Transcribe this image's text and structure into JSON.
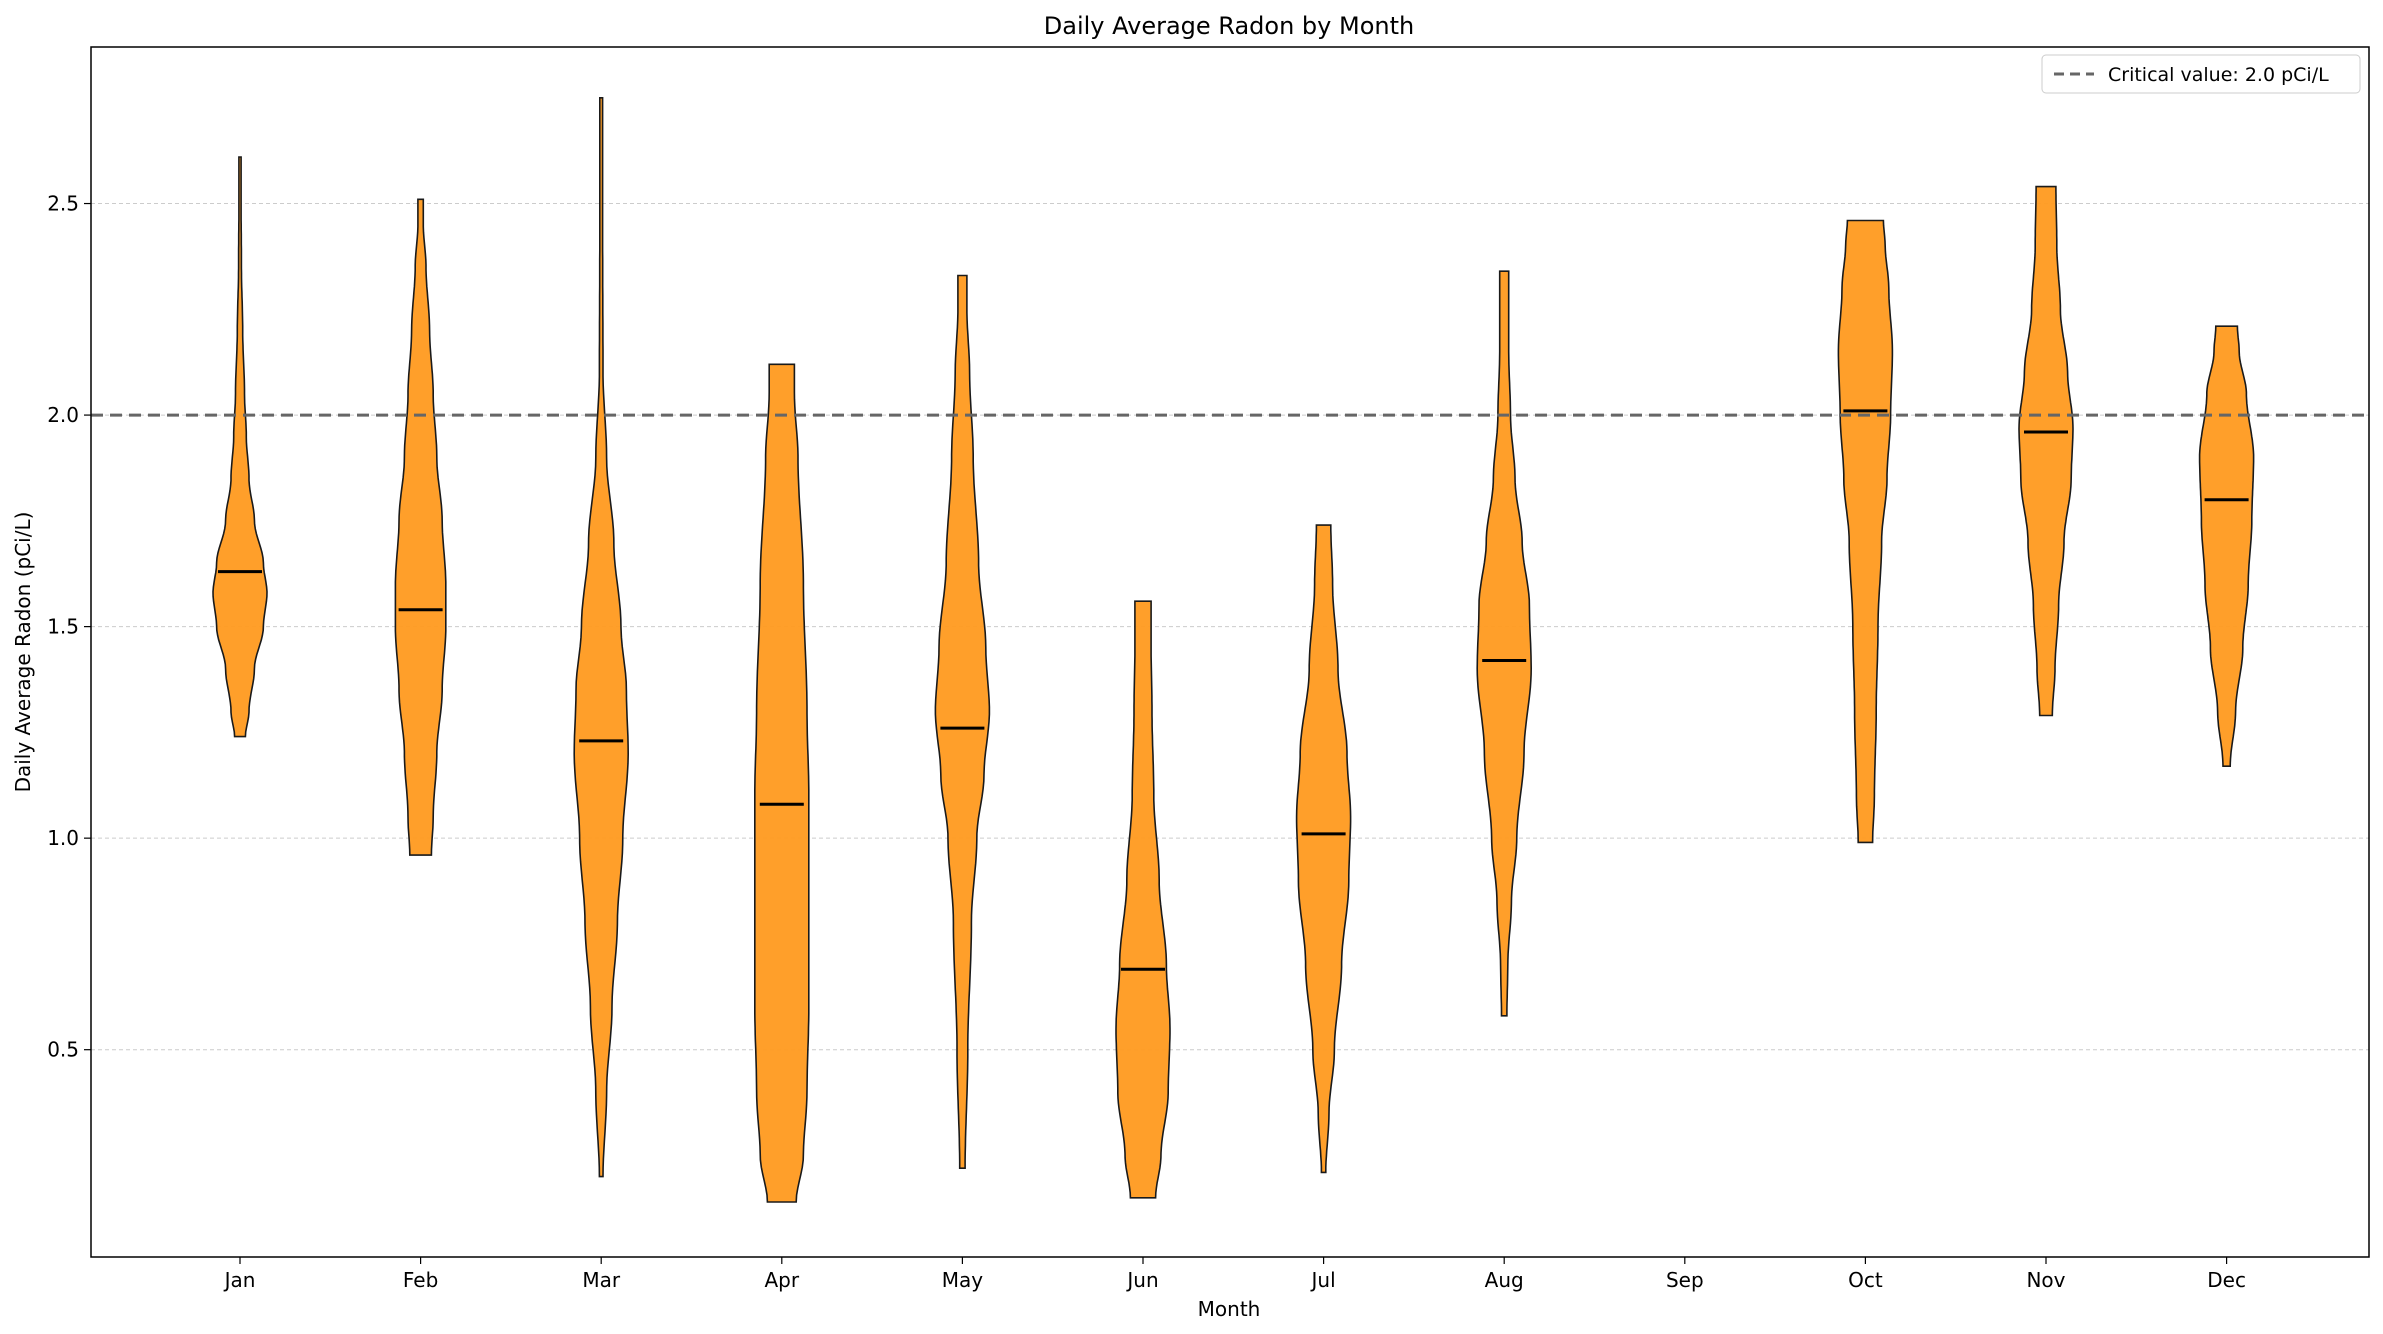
{
  "chart_data": {
    "type": "violin",
    "title": "Daily Average Radon by Month",
    "xlabel": "Month",
    "ylabel": "Daily Average Radon (pCi/L)",
    "ylim": [
      0.01,
      2.87
    ],
    "yticks": [
      0.5,
      1.0,
      1.5,
      2.0,
      2.5
    ],
    "ytick_labels": [
      "0.5",
      "1.0",
      "1.5",
      "2.0",
      "2.5"
    ],
    "categories": [
      "Jan",
      "Feb",
      "Mar",
      "Apr",
      "May",
      "Jun",
      "Jul",
      "Aug",
      "Sep",
      "Oct",
      "Nov",
      "Dec"
    ],
    "grid": "y-dashed",
    "fill_color": "#ff9a1f",
    "edge_color": "#1a1a1a",
    "reference_line": {
      "value": 2.0,
      "color": "#666666",
      "style": "dashed",
      "label": "Critical value: 2.0 pCi/L"
    },
    "legend": {
      "location": "top-right",
      "entries": [
        "Critical value: 2.0 pCi/L"
      ]
    },
    "series": [
      {
        "month": "Jan",
        "min": 1.24,
        "max": 2.61,
        "median": 1.63,
        "profile": [
          [
            1.24,
            0.03
          ],
          [
            1.3,
            0.05
          ],
          [
            1.4,
            0.08
          ],
          [
            1.5,
            0.13
          ],
          [
            1.58,
            0.15
          ],
          [
            1.65,
            0.13
          ],
          [
            1.75,
            0.08
          ],
          [
            1.85,
            0.05
          ],
          [
            1.95,
            0.035
          ],
          [
            2.05,
            0.025
          ],
          [
            2.2,
            0.015
          ],
          [
            2.35,
            0.008
          ],
          [
            2.5,
            0.006
          ],
          [
            2.61,
            0.006
          ]
        ]
      },
      {
        "month": "Feb",
        "min": 0.96,
        "max": 2.51,
        "median": 1.54,
        "profile": [
          [
            0.96,
            0.06
          ],
          [
            1.05,
            0.07
          ],
          [
            1.2,
            0.09
          ],
          [
            1.35,
            0.12
          ],
          [
            1.5,
            0.14
          ],
          [
            1.6,
            0.14
          ],
          [
            1.75,
            0.12
          ],
          [
            1.9,
            0.09
          ],
          [
            2.05,
            0.07
          ],
          [
            2.2,
            0.05
          ],
          [
            2.35,
            0.03
          ],
          [
            2.45,
            0.015
          ],
          [
            2.51,
            0.015
          ]
        ]
      },
      {
        "month": "Mar",
        "min": 0.2,
        "max": 2.75,
        "median": 1.23,
        "profile": [
          [
            0.2,
            0.01
          ],
          [
            0.4,
            0.03
          ],
          [
            0.6,
            0.06
          ],
          [
            0.8,
            0.09
          ],
          [
            1.0,
            0.12
          ],
          [
            1.2,
            0.15
          ],
          [
            1.35,
            0.14
          ],
          [
            1.5,
            0.11
          ],
          [
            1.7,
            0.07
          ],
          [
            1.9,
            0.03
          ],
          [
            2.1,
            0.01
          ],
          [
            2.4,
            0.008
          ],
          [
            2.6,
            0.008
          ],
          [
            2.75,
            0.008
          ]
        ]
      },
      {
        "month": "Apr",
        "min": 0.14,
        "max": 2.12,
        "median": 1.08,
        "profile": [
          [
            0.14,
            0.08
          ],
          [
            0.25,
            0.12
          ],
          [
            0.4,
            0.14
          ],
          [
            0.6,
            0.15
          ],
          [
            0.9,
            0.15
          ],
          [
            1.1,
            0.15
          ],
          [
            1.3,
            0.14
          ],
          [
            1.6,
            0.12
          ],
          [
            1.9,
            0.09
          ],
          [
            2.05,
            0.07
          ],
          [
            2.12,
            0.07
          ]
        ]
      },
      {
        "month": "May",
        "min": 0.22,
        "max": 2.33,
        "median": 1.26,
        "profile": [
          [
            0.22,
            0.015
          ],
          [
            0.5,
            0.03
          ],
          [
            0.8,
            0.05
          ],
          [
            1.0,
            0.08
          ],
          [
            1.15,
            0.12
          ],
          [
            1.3,
            0.15
          ],
          [
            1.45,
            0.13
          ],
          [
            1.65,
            0.09
          ],
          [
            1.9,
            0.06
          ],
          [
            2.1,
            0.04
          ],
          [
            2.25,
            0.025
          ],
          [
            2.33,
            0.025
          ]
        ]
      },
      {
        "month": "Jun",
        "min": 0.15,
        "max": 1.56,
        "median": 0.69,
        "profile": [
          [
            0.15,
            0.07
          ],
          [
            0.25,
            0.1
          ],
          [
            0.4,
            0.14
          ],
          [
            0.55,
            0.15
          ],
          [
            0.7,
            0.13
          ],
          [
            0.9,
            0.09
          ],
          [
            1.1,
            0.06
          ],
          [
            1.3,
            0.05
          ],
          [
            1.45,
            0.045
          ],
          [
            1.56,
            0.045
          ]
        ]
      },
      {
        "month": "Jul",
        "min": 0.21,
        "max": 1.74,
        "median": 1.01,
        "profile": [
          [
            0.21,
            0.012
          ],
          [
            0.35,
            0.03
          ],
          [
            0.5,
            0.06
          ],
          [
            0.7,
            0.1
          ],
          [
            0.9,
            0.14
          ],
          [
            1.05,
            0.15
          ],
          [
            1.2,
            0.13
          ],
          [
            1.4,
            0.08
          ],
          [
            1.6,
            0.05
          ],
          [
            1.74,
            0.04
          ]
        ]
      },
      {
        "month": "Aug",
        "min": 0.58,
        "max": 2.34,
        "median": 1.42,
        "profile": [
          [
            0.58,
            0.015
          ],
          [
            0.7,
            0.02
          ],
          [
            0.85,
            0.04
          ],
          [
            1.0,
            0.07
          ],
          [
            1.2,
            0.11
          ],
          [
            1.4,
            0.15
          ],
          [
            1.55,
            0.14
          ],
          [
            1.7,
            0.1
          ],
          [
            1.85,
            0.06
          ],
          [
            2.0,
            0.035
          ],
          [
            2.15,
            0.025
          ],
          [
            2.34,
            0.025
          ]
        ]
      },
      {
        "month": "Sep",
        "profile": []
      },
      {
        "month": "Oct",
        "min": 0.99,
        "max": 2.46,
        "median": 2.01,
        "profile": [
          [
            0.99,
            0.04
          ],
          [
            1.1,
            0.05
          ],
          [
            1.3,
            0.06
          ],
          [
            1.5,
            0.07
          ],
          [
            1.7,
            0.09
          ],
          [
            1.85,
            0.12
          ],
          [
            2.0,
            0.14
          ],
          [
            2.15,
            0.15
          ],
          [
            2.3,
            0.13
          ],
          [
            2.4,
            0.11
          ],
          [
            2.46,
            0.1
          ]
        ]
      },
      {
        "month": "Nov",
        "min": 1.29,
        "max": 2.54,
        "median": 1.96,
        "profile": [
          [
            1.29,
            0.035
          ],
          [
            1.4,
            0.05
          ],
          [
            1.55,
            0.07
          ],
          [
            1.7,
            0.1
          ],
          [
            1.85,
            0.14
          ],
          [
            1.97,
            0.15
          ],
          [
            2.1,
            0.12
          ],
          [
            2.25,
            0.08
          ],
          [
            2.4,
            0.06
          ],
          [
            2.54,
            0.055
          ]
        ]
      },
      {
        "month": "Dec",
        "min": 1.17,
        "max": 2.21,
        "median": 1.8,
        "profile": [
          [
            1.17,
            0.02
          ],
          [
            1.3,
            0.05
          ],
          [
            1.45,
            0.09
          ],
          [
            1.6,
            0.12
          ],
          [
            1.75,
            0.14
          ],
          [
            1.9,
            0.15
          ],
          [
            2.05,
            0.11
          ],
          [
            2.15,
            0.07
          ],
          [
            2.21,
            0.06
          ]
        ]
      }
    ]
  }
}
